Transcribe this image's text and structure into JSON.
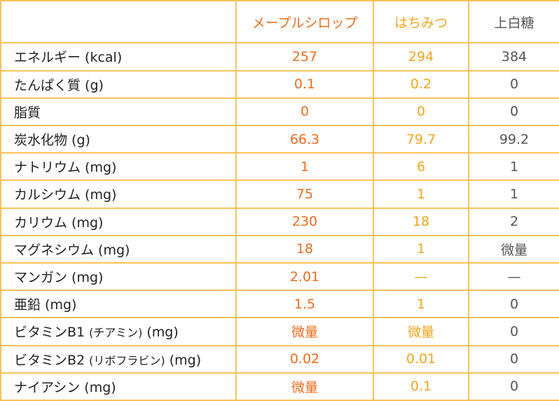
{
  "colors": {
    "border": "#f7c35a",
    "maple": "#ef6c1e",
    "honey": "#f2a51c",
    "sugar": "#555555",
    "label": "#222222"
  },
  "header": {
    "corner": "",
    "maple": "メープルシロップ",
    "honey": "はちみつ",
    "sugar": "上白糖"
  },
  "rows": [
    {
      "label": "エネルギー (kcal)",
      "maple": "257",
      "honey": "294",
      "sugar": "384"
    },
    {
      "label": "たんぱく質 (g)",
      "maple": "0.1",
      "honey": "0.2",
      "sugar": "0"
    },
    {
      "label": "脂質",
      "maple": "0",
      "honey": "0",
      "sugar": "0"
    },
    {
      "label": "炭水化物 (g)",
      "maple": "66.3",
      "honey": "79.7",
      "sugar": "99.2"
    },
    {
      "label": "ナトリウム (mg)",
      "maple": "1",
      "honey": "6",
      "sugar": "1"
    },
    {
      "label": "カルシウム (mg)",
      "maple": "75",
      "honey": "1",
      "sugar": "1"
    },
    {
      "label": "カリウム (mg)",
      "maple": "230",
      "honey": "18",
      "sugar": "2"
    },
    {
      "label": "マグネシウム (mg)",
      "maple": "18",
      "honey": "1",
      "sugar": "微量"
    },
    {
      "label": "マンガン (mg)",
      "maple": "2.01",
      "honey": "—",
      "sugar": "—"
    },
    {
      "label": "亜鉛 (mg)",
      "maple": "1.5",
      "honey": "1",
      "sugar": "0"
    },
    {
      "label": "ビタミンB1",
      "label_sub": "(チアミン)",
      "label_unit": "(mg)",
      "maple": "微量",
      "honey": "微量",
      "sugar": "0"
    },
    {
      "label": "ビタミンB2",
      "label_sub": "(リボフラビン)",
      "label_unit": "(mg)",
      "maple": "0.02",
      "honey": "0.01",
      "sugar": "0"
    },
    {
      "label": "ナイアシン (mg)",
      "maple": "微量",
      "honey": "0.1",
      "sugar": "0"
    }
  ]
}
